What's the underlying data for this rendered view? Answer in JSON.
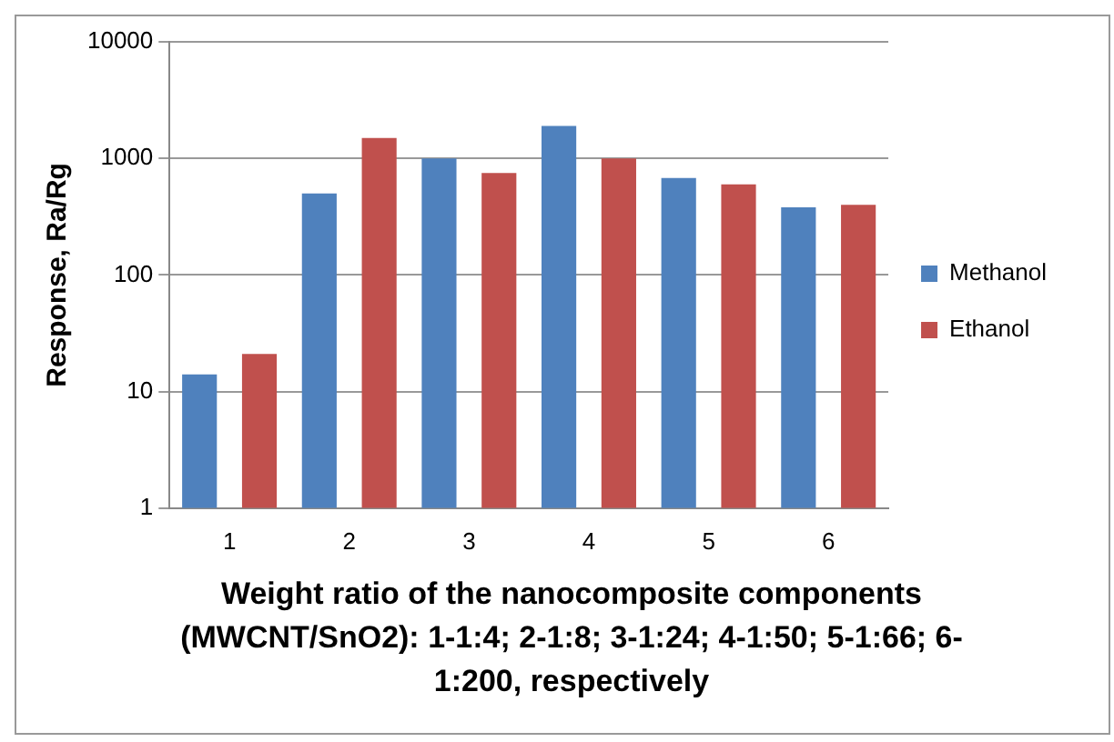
{
  "chart_data": {
    "type": "bar",
    "xlabel": "Weight ratio of the nanocomposite components (MWCNT/SnO2): 1-1:4; 2-1:8; 3-1:24; 4-1:50; 5-1:66; 6-1:200, respectively",
    "ylabel": "Response, Ra/Rg",
    "categories": [
      "1",
      "2",
      "3",
      "4",
      "5",
      "6"
    ],
    "series": [
      {
        "name": "Methanol",
        "color": "#4f81bd",
        "values": [
          14,
          500,
          1000,
          1900,
          680,
          380
        ]
      },
      {
        "name": "Ethanol",
        "color": "#c0504d",
        "values": [
          21,
          1500,
          750,
          1000,
          600,
          400
        ]
      }
    ],
    "log": "y",
    "ylim": [
      1,
      10000
    ],
    "yticks": [
      1,
      10,
      100,
      1000,
      10000
    ],
    "grid": "y",
    "legend": "right"
  }
}
